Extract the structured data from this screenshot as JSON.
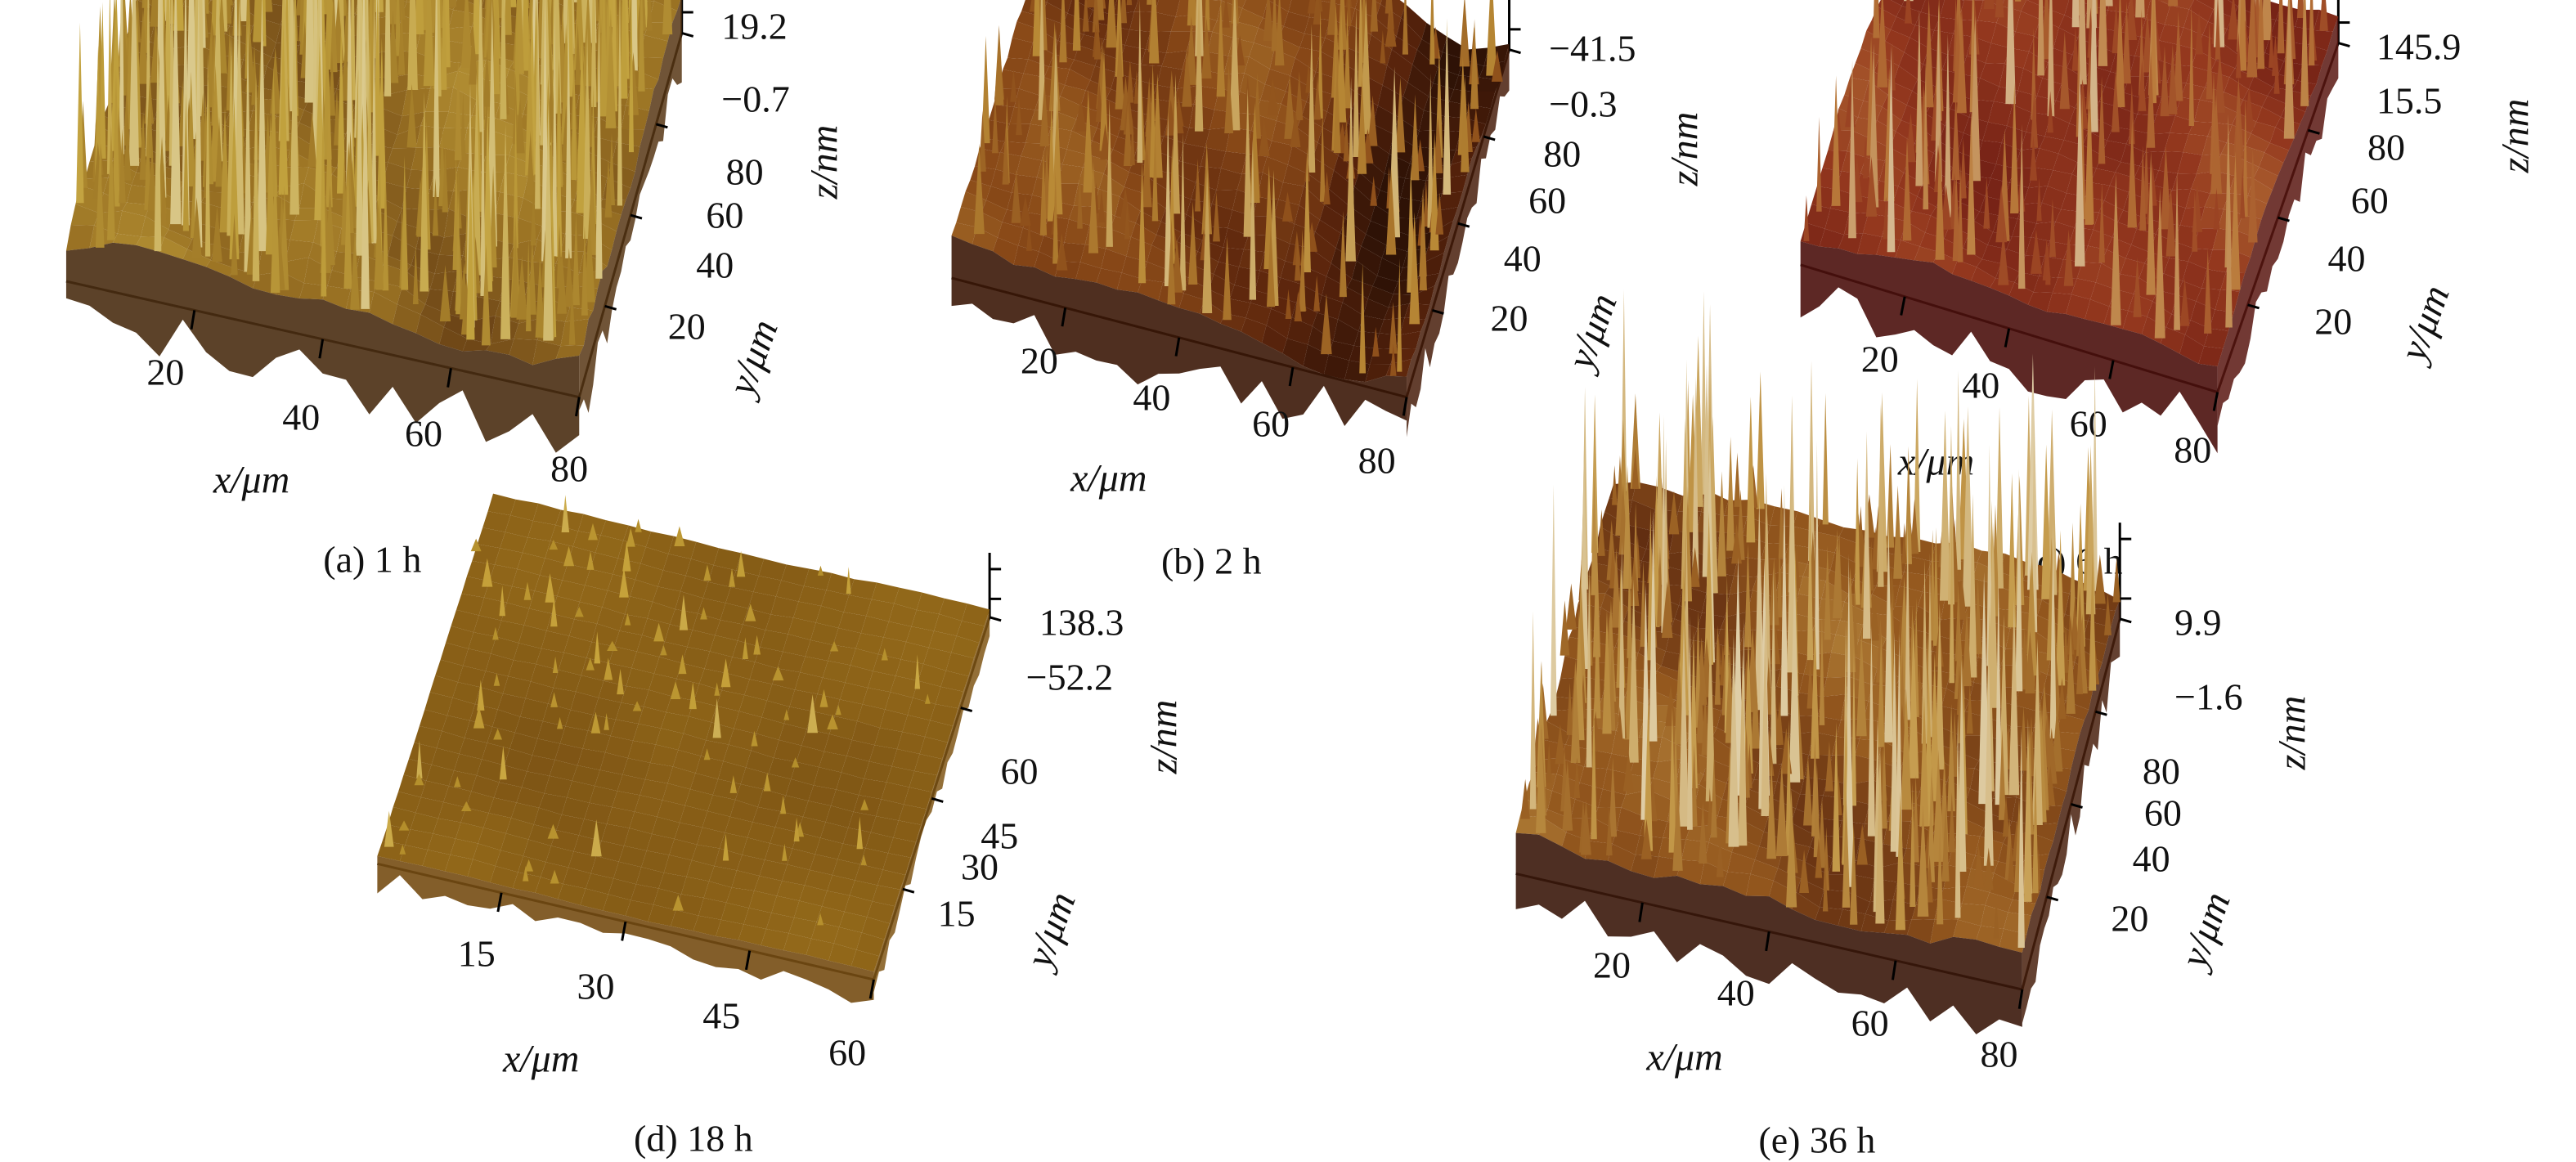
{
  "chart_data": [
    {
      "type": "surface",
      "caption": "(a) 1 h",
      "xlabel": "x/μm",
      "ylabel": "y/μm",
      "zlabel": "z/nm",
      "x_ticks": [
        "20",
        "40",
        "60",
        "80"
      ],
      "y_ticks": [
        "20",
        "40",
        "60",
        "80"
      ],
      "z_ticks": [
        "19.2",
        "−0.7"
      ],
      "xlim": [
        0,
        80
      ],
      "ylim": [
        0,
        80
      ],
      "zlim": [
        -0.7,
        19.2
      ],
      "colors": [
        "#3a2210",
        "#6b4316",
        "#9c7424",
        "#c2a23e",
        "#e6dcb2"
      ]
    },
    {
      "type": "surface",
      "caption": "(b) 2 h",
      "xlabel": "x/μm",
      "ylabel": "y/μm",
      "zlabel": "z/nm",
      "x_ticks": [
        "20",
        "40",
        "60",
        "80"
      ],
      "y_ticks": [
        "20",
        "40",
        "60",
        "80"
      ],
      "z_ticks": [
        "−41.5",
        "−0.3"
      ],
      "xlim": [
        0,
        80
      ],
      "ylim": [
        0,
        80
      ],
      "zlim": [
        -41.5,
        -0.3
      ],
      "colors": [
        "#2e1206",
        "#5a240c",
        "#8a4a18",
        "#b98a36",
        "#e8dcb0"
      ]
    },
    {
      "type": "surface",
      "caption": "(c) 6 h",
      "xlabel": "x/μm",
      "ylabel": "y/μm",
      "zlabel": "z/nm",
      "x_ticks": [
        "20",
        "40",
        "60",
        "80"
      ],
      "y_ticks": [
        "20",
        "40",
        "60",
        "80"
      ],
      "z_ticks": [
        "145.9",
        "15.5"
      ],
      "xlim": [
        0,
        80
      ],
      "ylim": [
        0,
        80
      ],
      "zlim": [
        15.5,
        145.9
      ],
      "colors": [
        "#3a0c0a",
        "#6e1d14",
        "#94381e",
        "#b97a3a",
        "#e6dcc0"
      ]
    },
    {
      "type": "surface",
      "caption": "(d) 18 h",
      "xlabel": "x/μm",
      "ylabel": "y/μm",
      "zlabel": "z/nm",
      "x_ticks": [
        "15",
        "30",
        "45",
        "60"
      ],
      "y_ticks": [
        "15",
        "30",
        "45",
        "60"
      ],
      "z_ticks": [
        "138.3",
        "−52.2"
      ],
      "xlim": [
        0,
        60
      ],
      "ylim": [
        0,
        60
      ],
      "zlim": [
        -52.2,
        138.3
      ],
      "colors": [
        "#6a4210",
        "#8e6418",
        "#b08a28",
        "#c8a43c",
        "#ddd09a"
      ]
    },
    {
      "type": "surface",
      "caption": "(e) 36 h",
      "xlabel": "x/μm",
      "ylabel": "y/μm",
      "zlabel": "z/nm",
      "x_ticks": [
        "20",
        "40",
        "60",
        "80"
      ],
      "y_ticks": [
        "20",
        "40",
        "60",
        "80"
      ],
      "z_ticks": [
        "9.9",
        "−1.6"
      ],
      "xlim": [
        0,
        80
      ],
      "ylim": [
        0,
        80
      ],
      "zlim": [
        -1.6,
        9.9
      ],
      "colors": [
        "#2a1008",
        "#5e2a10",
        "#94581e",
        "#c49a4a",
        "#ece6d2"
      ]
    }
  ]
}
